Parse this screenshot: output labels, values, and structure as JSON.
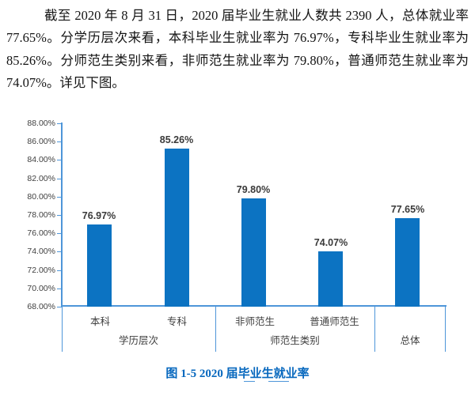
{
  "paragraph": {
    "lines": [
      "截至 2020 年 8 月 31 日，2020 届毕业生就业人数共 2390 人，总体就业率为",
      "77.65%。分学历层次来看，本科毕业生就业率为 76.97%，专科毕业生就业率为",
      "85.26%。分师范生类别来看，非师范生就业率为 79.80%，普通师范生就业率为",
      "74.07%。详见下图。"
    ]
  },
  "chart_data": {
    "type": "bar",
    "title": "图1-5 2020届毕业生就业率",
    "categories": [
      "本科",
      "专科",
      "非师范生",
      "普通师范生",
      "总体"
    ],
    "values": [
      76.97,
      85.26,
      79.8,
      74.07,
      77.65
    ],
    "data_labels": [
      "76.97%",
      "85.26%",
      "79.80%",
      "74.07%",
      "77.65%"
    ],
    "groups": [
      {
        "label": "学历层次",
        "members": [
          "本科",
          "专科"
        ]
      },
      {
        "label": "师范生类别",
        "members": [
          "非师范生",
          "普通师范生"
        ]
      },
      {
        "label": "总体",
        "members": [
          "总体"
        ]
      }
    ],
    "group_labels": [
      "学历层次",
      "师范生类别",
      "总体"
    ],
    "xlabel": "",
    "ylabel": "",
    "ylim": [
      68,
      88
    ],
    "ytick_step": 2,
    "yticks": [
      "88.00%",
      "86.00%",
      "84.00%",
      "82.00%",
      "80.00%",
      "78.00%",
      "76.00%",
      "74.00%",
      "72.00%",
      "70.00%",
      "68.00%"
    ],
    "grid": false,
    "legend": false,
    "bar_color": "#0c73c2",
    "axis_color": "#4e96d9",
    "data_label_color": "#3a3a3a"
  },
  "caption": {
    "text": "图 1-5  2020 届毕业生就业率",
    "color": "#0768be"
  }
}
